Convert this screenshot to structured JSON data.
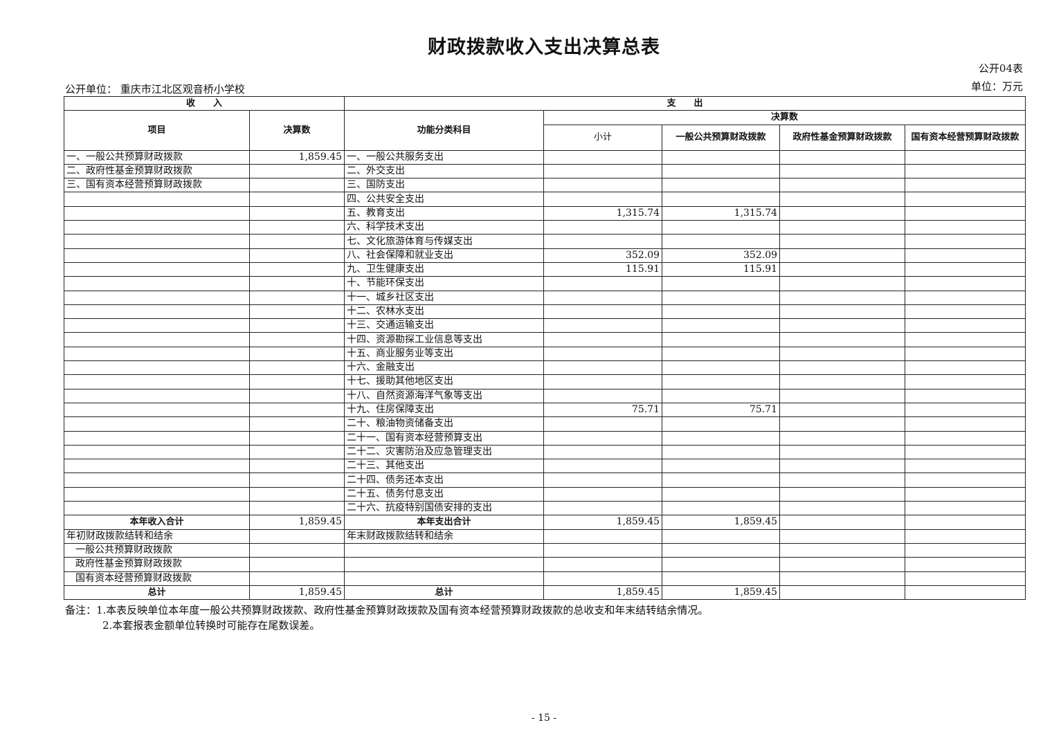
{
  "title": "财政拨款收入支出决算总表",
  "form_no": "公开04表",
  "unit": "单位：万元",
  "org": "公开单位：  重庆市江北区观音桥小学校",
  "headers": {
    "income": "收　　入",
    "expense": "支　　出",
    "item": "项目",
    "amount": "决算数",
    "func": "功能分类科目",
    "final": "决算数",
    "subtotal": "小计",
    "general": "一般公共预算财政拨款",
    "gov_fund": "政府性基金预算财政拨款",
    "state_capital": "国有资本经营预算财政拨款"
  },
  "rows": [
    {
      "income": "一、一般公共预算财政拨款",
      "income_amt": "1,859.45",
      "expense": "一、一般公共服务支出",
      "sub": "",
      "gen": "",
      "gov": "",
      "sc": ""
    },
    {
      "income": "二、政府性基金预算财政拨款",
      "income_amt": "",
      "expense": "二、外交支出",
      "sub": "",
      "gen": "",
      "gov": "",
      "sc": ""
    },
    {
      "income": "三、国有资本经营预算财政拨款",
      "income_amt": "",
      "expense": "三、国防支出",
      "sub": "",
      "gen": "",
      "gov": "",
      "sc": ""
    },
    {
      "income": "",
      "income_amt": "",
      "expense": "四、公共安全支出",
      "sub": "",
      "gen": "",
      "gov": "",
      "sc": ""
    },
    {
      "income": "",
      "income_amt": "",
      "expense": "五、教育支出",
      "sub": "1,315.74",
      "gen": "1,315.74",
      "gov": "",
      "sc": ""
    },
    {
      "income": "",
      "income_amt": "",
      "expense": "六、科学技术支出",
      "sub": "",
      "gen": "",
      "gov": "",
      "sc": ""
    },
    {
      "income": "",
      "income_amt": "",
      "expense": "七、文化旅游体育与传媒支出",
      "sub": "",
      "gen": "",
      "gov": "",
      "sc": ""
    },
    {
      "income": "",
      "income_amt": "",
      "expense": "八、社会保障和就业支出",
      "sub": "352.09",
      "gen": "352.09",
      "gov": "",
      "sc": ""
    },
    {
      "income": "",
      "income_amt": "",
      "expense": "九、卫生健康支出",
      "sub": "115.91",
      "gen": "115.91",
      "gov": "",
      "sc": ""
    },
    {
      "income": "",
      "income_amt": "",
      "expense": "十、节能环保支出",
      "sub": "",
      "gen": "",
      "gov": "",
      "sc": ""
    },
    {
      "income": "",
      "income_amt": "",
      "expense": "十一、城乡社区支出",
      "sub": "",
      "gen": "",
      "gov": "",
      "sc": ""
    },
    {
      "income": "",
      "income_amt": "",
      "expense": "十二、农林水支出",
      "sub": "",
      "gen": "",
      "gov": "",
      "sc": ""
    },
    {
      "income": "",
      "income_amt": "",
      "expense": "十三、交通运输支出",
      "sub": "",
      "gen": "",
      "gov": "",
      "sc": ""
    },
    {
      "income": "",
      "income_amt": "",
      "expense": "十四、资源勘探工业信息等支出",
      "sub": "",
      "gen": "",
      "gov": "",
      "sc": ""
    },
    {
      "income": "",
      "income_amt": "",
      "expense": "十五、商业服务业等支出",
      "sub": "",
      "gen": "",
      "gov": "",
      "sc": ""
    },
    {
      "income": "",
      "income_amt": "",
      "expense": "十六、金融支出",
      "sub": "",
      "gen": "",
      "gov": "",
      "sc": ""
    },
    {
      "income": "",
      "income_amt": "",
      "expense": "十七、援助其他地区支出",
      "sub": "",
      "gen": "",
      "gov": "",
      "sc": ""
    },
    {
      "income": "",
      "income_amt": "",
      "expense": "十八、自然资源海洋气象等支出",
      "sub": "",
      "gen": "",
      "gov": "",
      "sc": ""
    },
    {
      "income": "",
      "income_amt": "",
      "expense": "十九、住房保障支出",
      "sub": "75.71",
      "gen": "75.71",
      "gov": "",
      "sc": ""
    },
    {
      "income": "",
      "income_amt": "",
      "expense": "二十、粮油物资储备支出",
      "sub": "",
      "gen": "",
      "gov": "",
      "sc": ""
    },
    {
      "income": "",
      "income_amt": "",
      "expense": "二十一、国有资本经营预算支出",
      "sub": "",
      "gen": "",
      "gov": "",
      "sc": ""
    },
    {
      "income": "",
      "income_amt": "",
      "expense": "二十二、灾害防治及应急管理支出",
      "sub": "",
      "gen": "",
      "gov": "",
      "sc": ""
    },
    {
      "income": "",
      "income_amt": "",
      "expense": "二十三、其他支出",
      "sub": "",
      "gen": "",
      "gov": "",
      "sc": ""
    },
    {
      "income": "",
      "income_amt": "",
      "expense": "二十四、债务还本支出",
      "sub": "",
      "gen": "",
      "gov": "",
      "sc": ""
    },
    {
      "income": "",
      "income_amt": "",
      "expense": "二十五、债务付息支出",
      "sub": "",
      "gen": "",
      "gov": "",
      "sc": ""
    },
    {
      "income": "",
      "income_amt": "",
      "expense": "二十六、抗疫特别国债安排的支出",
      "sub": "",
      "gen": "",
      "gov": "",
      "sc": ""
    },
    {
      "income": "本年收入合计",
      "income_amt": "1,859.45",
      "expense": "本年支出合计",
      "sub": "1,859.45",
      "gen": "1,859.45",
      "gov": "",
      "sc": "",
      "bold": true
    },
    {
      "income": "年初财政拨款结转和结余",
      "income_amt": "",
      "expense": "年末财政拨款结转和结余",
      "sub": "",
      "gen": "",
      "gov": "",
      "sc": ""
    },
    {
      "income": "一般公共预算财政拨款",
      "income_amt": "",
      "expense": "",
      "sub": "",
      "gen": "",
      "gov": "",
      "sc": "",
      "indent": true
    },
    {
      "income": "政府性基金预算财政拨款",
      "income_amt": "",
      "expense": "",
      "sub": "",
      "gen": "",
      "gov": "",
      "sc": "",
      "indent": true
    },
    {
      "income": "国有资本经营预算财政拨款",
      "income_amt": "",
      "expense": "",
      "sub": "",
      "gen": "",
      "gov": "",
      "sc": "",
      "indent": true
    },
    {
      "income": "总计",
      "income_amt": "1,859.45",
      "expense": "总计",
      "sub": "1,859.45",
      "gen": "1,859.45",
      "gov": "",
      "sc": "",
      "bold": true
    }
  ],
  "notes": [
    "备注：1.本表反映单位本年度一般公共预算财政拨款、政府性基金预算财政拨款及国有资本经营预算财政拨款的总收支和年末结转结余情况。",
    "2.本套报表金额单位转换时可能存在尾数误差。"
  ],
  "page_number": "- 15 -"
}
